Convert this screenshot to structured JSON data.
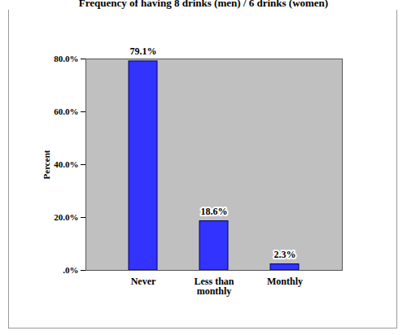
{
  "chart_data": {
    "type": "bar",
    "title": "Frequency of having 8 drinks (men) / 6 drinks (women)",
    "y_label": "Percent",
    "categories": [
      "Never",
      "Less than monthly",
      "Monthly"
    ],
    "values": [
      79.1,
      18.6,
      2.3
    ],
    "value_labels": [
      "79.1%",
      "18.6%",
      "2.3%"
    ],
    "data_labels": true,
    "color": "#3333ff",
    "ylim": [
      0,
      80
    ],
    "yticks": [
      {
        "value": 0,
        "label": ".0%"
      },
      {
        "value": 20,
        "label": "20.0%"
      },
      {
        "value": 40,
        "label": "40.0%"
      },
      {
        "value": 60,
        "label": "60.0%"
      },
      {
        "value": 80,
        "label": "80.0%"
      }
    ],
    "grid": false
  }
}
